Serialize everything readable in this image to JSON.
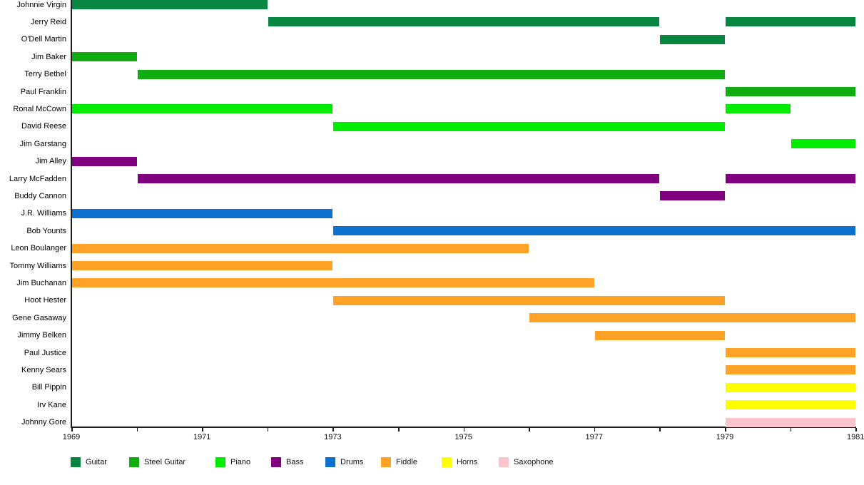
{
  "chart_data": {
    "type": "gantt-timeline",
    "title": "",
    "xlabel": "",
    "ylabel": "",
    "grid": false,
    "x_axis": {
      "min": 1969,
      "max": 1981,
      "labeled_ticks": [
        1969,
        1971,
        1973,
        1975,
        1977,
        1979,
        1981
      ],
      "minor_tick_every": 1
    },
    "legend": {
      "position": "bottom",
      "items": [
        {
          "label": "Guitar",
          "color": "#088540"
        },
        {
          "label": "Steel Guitar",
          "color": "#11AC11"
        },
        {
          "label": "Piano",
          "color": "#00EC00"
        },
        {
          "label": "Bass",
          "color": "#800080"
        },
        {
          "label": "Drums",
          "color": "#0D72CF"
        },
        {
          "label": "Fiddle",
          "color": "#FFA228"
        },
        {
          "label": "Horns",
          "color": "#FFFF00"
        },
        {
          "label": "Saxophone",
          "color": "#FAC5CC"
        }
      ]
    },
    "members": [
      {
        "name": "Johnnie Virgin",
        "instrument": "Guitar",
        "stints": [
          [
            1969,
            1972
          ]
        ]
      },
      {
        "name": "Jerry Reid",
        "instrument": "Guitar",
        "stints": [
          [
            1972,
            1978
          ],
          [
            1979,
            1981
          ]
        ]
      },
      {
        "name": "O'Dell Martin",
        "instrument": "Guitar",
        "stints": [
          [
            1978,
            1979
          ]
        ]
      },
      {
        "name": "Jim Baker",
        "instrument": "Steel Guitar",
        "stints": [
          [
            1969,
            1970
          ]
        ]
      },
      {
        "name": "Terry Bethel",
        "instrument": "Steel Guitar",
        "stints": [
          [
            1970,
            1979
          ]
        ]
      },
      {
        "name": "Paul Franklin",
        "instrument": "Steel Guitar",
        "stints": [
          [
            1979,
            1981
          ]
        ]
      },
      {
        "name": "Ronal McCown",
        "instrument": "Piano",
        "stints": [
          [
            1969,
            1973
          ],
          [
            1979,
            1980
          ]
        ]
      },
      {
        "name": "David Reese",
        "instrument": "Piano",
        "stints": [
          [
            1973,
            1979
          ]
        ]
      },
      {
        "name": "Jim Garstang",
        "instrument": "Piano",
        "stints": [
          [
            1980,
            1981
          ]
        ]
      },
      {
        "name": "Jim Alley",
        "instrument": "Bass",
        "stints": [
          [
            1969,
            1970
          ]
        ]
      },
      {
        "name": "Larry McFadden",
        "instrument": "Bass",
        "stints": [
          [
            1970,
            1978
          ],
          [
            1979,
            1981
          ]
        ]
      },
      {
        "name": "Buddy Cannon",
        "instrument": "Bass",
        "stints": [
          [
            1978,
            1979
          ]
        ]
      },
      {
        "name": "J.R. Williams",
        "instrument": "Drums",
        "stints": [
          [
            1969,
            1973
          ]
        ]
      },
      {
        "name": "Bob Younts",
        "instrument": "Drums",
        "stints": [
          [
            1973,
            1981
          ]
        ]
      },
      {
        "name": "Leon Boulanger",
        "instrument": "Fiddle",
        "stints": [
          [
            1969,
            1976
          ]
        ]
      },
      {
        "name": "Tommy Williams",
        "instrument": "Fiddle",
        "stints": [
          [
            1969,
            1973
          ]
        ]
      },
      {
        "name": "Jim Buchanan",
        "instrument": "Fiddle",
        "stints": [
          [
            1969,
            1977
          ]
        ]
      },
      {
        "name": "Hoot Hester",
        "instrument": "Fiddle",
        "stints": [
          [
            1973,
            1979
          ]
        ]
      },
      {
        "name": "Gene Gasaway",
        "instrument": "Fiddle",
        "stints": [
          [
            1976,
            1981
          ]
        ]
      },
      {
        "name": "Jimmy Belken",
        "instrument": "Fiddle",
        "stints": [
          [
            1977,
            1979
          ]
        ]
      },
      {
        "name": "Paul Justice",
        "instrument": "Fiddle",
        "stints": [
          [
            1979,
            1981
          ]
        ]
      },
      {
        "name": "Kenny Sears",
        "instrument": "Fiddle",
        "stints": [
          [
            1979,
            1981
          ]
        ]
      },
      {
        "name": "Bill Pippin",
        "instrument": "Horns",
        "stints": [
          [
            1979,
            1981
          ]
        ]
      },
      {
        "name": "Irv Kane",
        "instrument": "Horns",
        "stints": [
          [
            1979,
            1981
          ]
        ]
      },
      {
        "name": "Johnny Gore",
        "instrument": "Saxophone",
        "stints": [
          [
            1979,
            1981
          ]
        ]
      }
    ]
  }
}
